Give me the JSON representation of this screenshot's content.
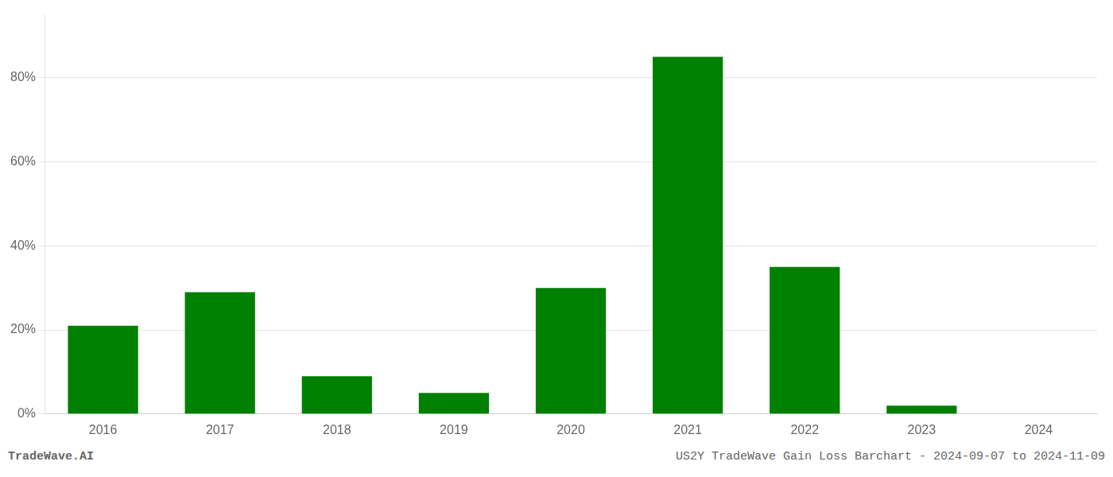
{
  "chart_data": {
    "type": "bar",
    "categories": [
      "2016",
      "2017",
      "2018",
      "2019",
      "2020",
      "2021",
      "2022",
      "2023",
      "2024"
    ],
    "values": [
      0.21,
      0.29,
      0.09,
      0.05,
      0.3,
      0.85,
      0.35,
      0.02,
      0.001
    ],
    "color": "#008000",
    "ylim": [
      0,
      0.95
    ],
    "yticks": [
      {
        "value": 0.0,
        "label": "0%"
      },
      {
        "value": 0.2,
        "label": "20%"
      },
      {
        "value": 0.4,
        "label": "40%"
      },
      {
        "value": 0.6,
        "label": "60%"
      },
      {
        "value": 0.8,
        "label": "80%"
      }
    ],
    "grid": "y",
    "annotations": [
      "TradeWave.AI",
      "US2Y TradeWave Gain Loss Barchart - 2024-09-07 to 2024-11-09"
    ]
  }
}
